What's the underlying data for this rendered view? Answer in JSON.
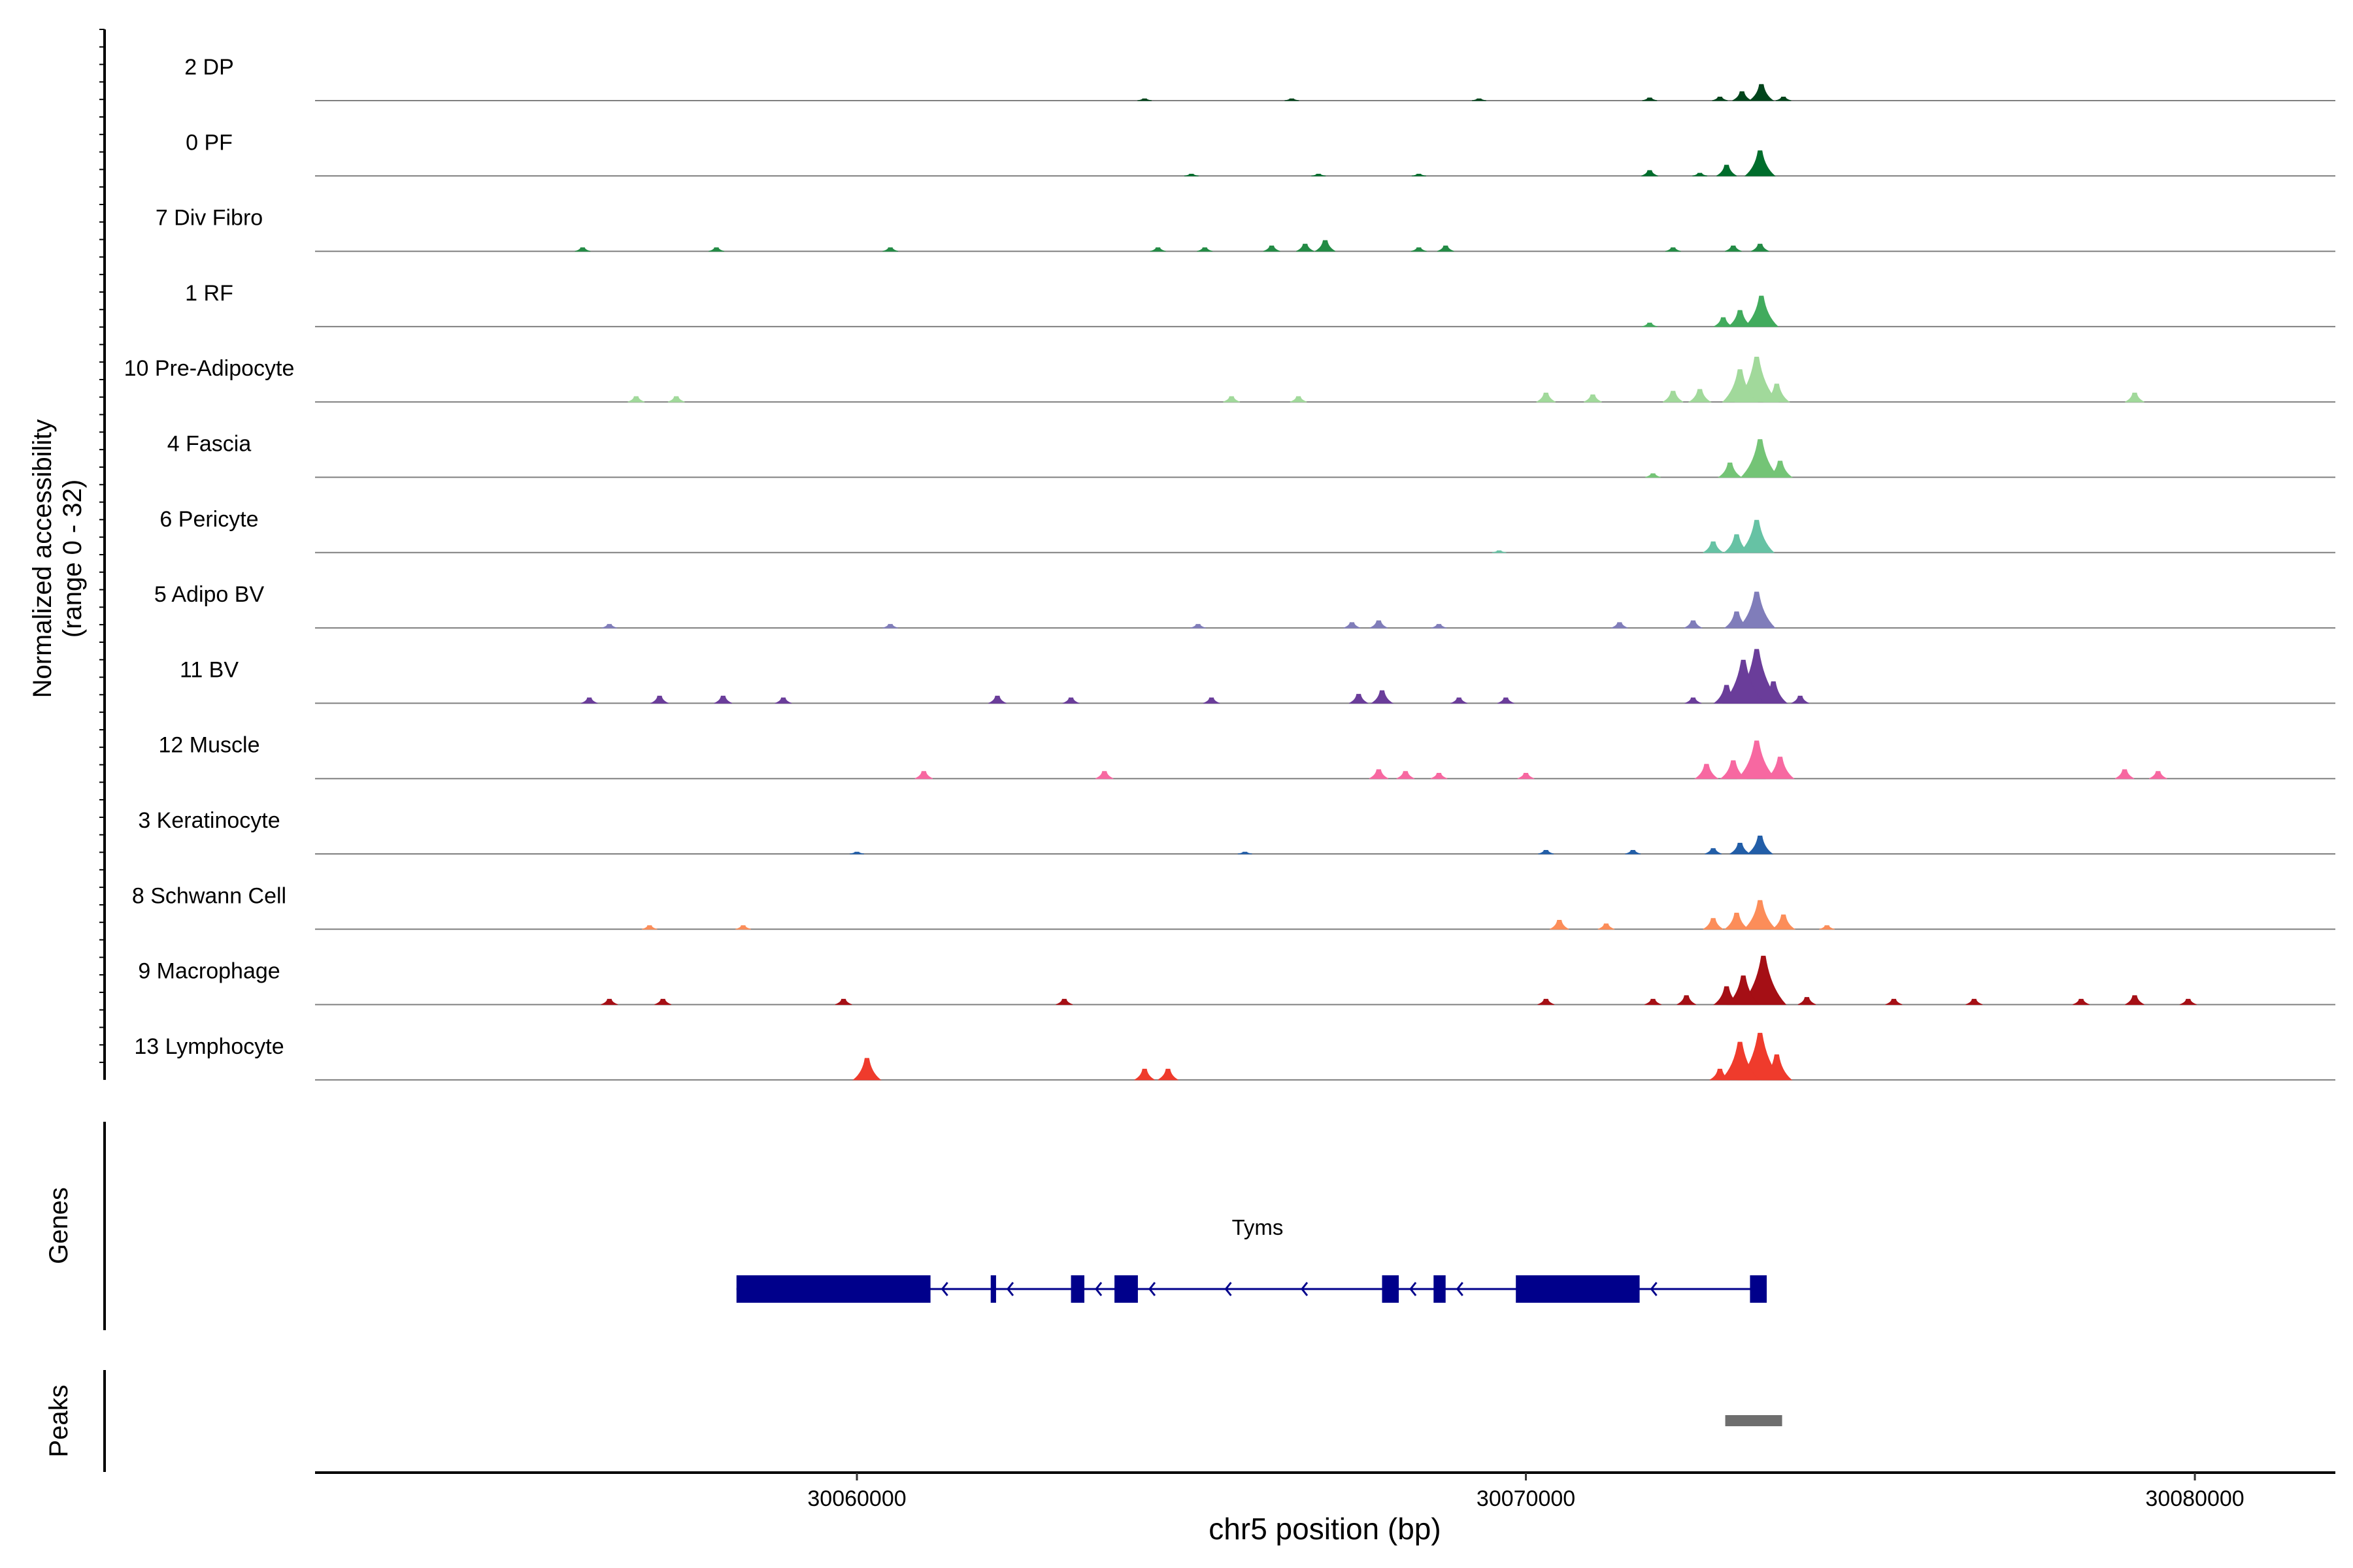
{
  "chart_data": {
    "type": "area",
    "title": "",
    "tracks_ylabel_line1": "Normalized accessibility",
    "tracks_ylabel_line2": "(range 0 - 32)",
    "y_range": [
      0,
      32
    ],
    "xlabel": "chr5 position (bp)",
    "xlim": [
      30051900,
      30082100
    ],
    "xticks": [
      30060000,
      30070000,
      30080000
    ],
    "xtick_labels": [
      "30060000",
      "30070000",
      "30080000"
    ],
    "tracks": [
      {
        "name": "2 DP",
        "color": "#00441b",
        "peaks": [
          [
            30073520,
            9
          ],
          [
            30073230,
            5
          ],
          [
            30072900,
            2
          ],
          [
            30073850,
            2
          ],
          [
            30071850,
            1.5
          ],
          [
            30066500,
            1
          ],
          [
            30064300,
            1
          ],
          [
            30069300,
            1
          ]
        ]
      },
      {
        "name": "0 PF",
        "color": "#006d2c",
        "peaks": [
          [
            30073500,
            14
          ],
          [
            30073000,
            6
          ],
          [
            30071850,
            3
          ],
          [
            30072600,
            1.5
          ],
          [
            30068400,
            1
          ],
          [
            30066900,
            1
          ],
          [
            30065000,
            1
          ]
        ]
      },
      {
        "name": "7 Div Fibro",
        "color": "#238b45",
        "peaks": [
          [
            30067000,
            6
          ],
          [
            30066700,
            4
          ],
          [
            30066200,
            3
          ],
          [
            30073500,
            4
          ],
          [
            30073100,
            3
          ],
          [
            30072200,
            2
          ],
          [
            30068800,
            3
          ],
          [
            30068400,
            2
          ],
          [
            30065200,
            2
          ],
          [
            30064500,
            2
          ],
          [
            30060500,
            2
          ],
          [
            30057900,
            2
          ],
          [
            30055900,
            2
          ]
        ]
      },
      {
        "name": "1 RF",
        "color": "#41ab5d",
        "peaks": [
          [
            30073520,
            17
          ],
          [
            30073200,
            9
          ],
          [
            30072950,
            5
          ],
          [
            30071850,
            2
          ]
        ]
      },
      {
        "name": "10 Pre-Adipocyte",
        "color": "#a1d99b",
        "peaks": [
          [
            30073450,
            25
          ],
          [
            30073200,
            18
          ],
          [
            30073750,
            10
          ],
          [
            30072600,
            7
          ],
          [
            30072200,
            6
          ],
          [
            30070300,
            5
          ],
          [
            30071000,
            4
          ],
          [
            30079100,
            5
          ],
          [
            30056700,
            3
          ],
          [
            30057300,
            3
          ],
          [
            30065600,
            3
          ],
          [
            30066600,
            3
          ]
        ]
      },
      {
        "name": "4 Fascia",
        "color": "#74c476",
        "peaks": [
          [
            30073500,
            21
          ],
          [
            30073050,
            8
          ],
          [
            30073800,
            9
          ],
          [
            30071900,
            2
          ]
        ]
      },
      {
        "name": "6 Pericyte",
        "color": "#66c2a4",
        "peaks": [
          [
            30073450,
            18
          ],
          [
            30073150,
            10
          ],
          [
            30072800,
            6
          ],
          [
            30069600,
            1
          ]
        ]
      },
      {
        "name": "5 Adipo BV",
        "color": "#807dba",
        "peaks": [
          [
            30073450,
            20
          ],
          [
            30073150,
            9
          ],
          [
            30072500,
            4
          ],
          [
            30067800,
            4
          ],
          [
            30067400,
            3
          ],
          [
            30068700,
            2
          ],
          [
            30071400,
            3
          ],
          [
            30056300,
            2
          ],
          [
            30060500,
            2
          ],
          [
            30065100,
            2
          ]
        ]
      },
      {
        "name": "11 BV",
        "color": "#6a3d9a",
        "peaks": [
          [
            30073450,
            30
          ],
          [
            30073250,
            24
          ],
          [
            30073700,
            12
          ],
          [
            30073000,
            10
          ],
          [
            30074100,
            4
          ],
          [
            30067850,
            7
          ],
          [
            30067500,
            5
          ],
          [
            30057050,
            4
          ],
          [
            30058000,
            4
          ],
          [
            30058900,
            3
          ],
          [
            30062100,
            4
          ],
          [
            30063200,
            3
          ],
          [
            30065300,
            3
          ],
          [
            30069000,
            3
          ],
          [
            30069700,
            3
          ],
          [
            30056000,
            3
          ],
          [
            30072500,
            3
          ]
        ]
      },
      {
        "name": "12 Muscle",
        "color": "#f768a1",
        "peaks": [
          [
            30073450,
            21
          ],
          [
            30073100,
            10
          ],
          [
            30073800,
            12
          ],
          [
            30072700,
            8
          ],
          [
            30061000,
            4
          ],
          [
            30063700,
            4
          ],
          [
            30067800,
            5
          ],
          [
            30068200,
            4
          ],
          [
            30068700,
            3
          ],
          [
            30070000,
            3
          ],
          [
            30078950,
            5
          ],
          [
            30079450,
            4
          ]
        ]
      },
      {
        "name": "3 Keratinocyte",
        "color": "#225ea8",
        "peaks": [
          [
            30073500,
            10
          ],
          [
            30073200,
            6
          ],
          [
            30072800,
            3
          ],
          [
            30071600,
            2
          ],
          [
            30070300,
            2
          ],
          [
            30065800,
            1
          ],
          [
            30060000,
            1
          ]
        ]
      },
      {
        "name": "8 Schwann Cell",
        "color": "#fc8d59",
        "peaks": [
          [
            30073500,
            16
          ],
          [
            30073150,
            9
          ],
          [
            30072800,
            6
          ],
          [
            30073850,
            8
          ],
          [
            30070500,
            5
          ],
          [
            30071200,
            3
          ],
          [
            30074500,
            2
          ],
          [
            30056900,
            2
          ],
          [
            30058300,
            2
          ]
        ]
      },
      {
        "name": "9 Macrophage",
        "color": "#a50f15",
        "peaks": [
          [
            30073550,
            27
          ],
          [
            30073250,
            16
          ],
          [
            30073000,
            10
          ],
          [
            30072400,
            5
          ],
          [
            30074200,
            4
          ],
          [
            30056300,
            3
          ],
          [
            30057100,
            3
          ],
          [
            30059800,
            3
          ],
          [
            30063100,
            3
          ],
          [
            30070300,
            3
          ],
          [
            30071900,
            3
          ],
          [
            30075500,
            3
          ],
          [
            30076700,
            3
          ],
          [
            30078300,
            3
          ],
          [
            30079100,
            5
          ],
          [
            30079900,
            3
          ]
        ]
      },
      {
        "name": "13 Lymphocyte",
        "color": "#ef3b2c",
        "peaks": [
          [
            30073500,
            26
          ],
          [
            30073200,
            21
          ],
          [
            30073750,
            14
          ],
          [
            30072900,
            6
          ],
          [
            30060150,
            12
          ],
          [
            30064300,
            6
          ],
          [
            30064650,
            6
          ]
        ]
      }
    ],
    "genes_label": "Genes",
    "gene": {
      "name": "Tyms",
      "strand": "-",
      "start": 30058200,
      "end": 30073600,
      "color": "#00008b",
      "exons": [
        [
          30058200,
          30061100
        ],
        [
          30062000,
          30062080
        ],
        [
          30063200,
          30063400
        ],
        [
          30063850,
          30064200
        ],
        [
          30067850,
          30068100
        ],
        [
          30068620,
          30068800
        ],
        [
          30069850,
          30071700
        ],
        [
          30073350,
          30073600
        ]
      ]
    },
    "peaks_label": "Peaks",
    "peak_regions": [
      {
        "start": 30072980,
        "end": 30073830,
        "color": "#6e6e6e"
      }
    ]
  }
}
